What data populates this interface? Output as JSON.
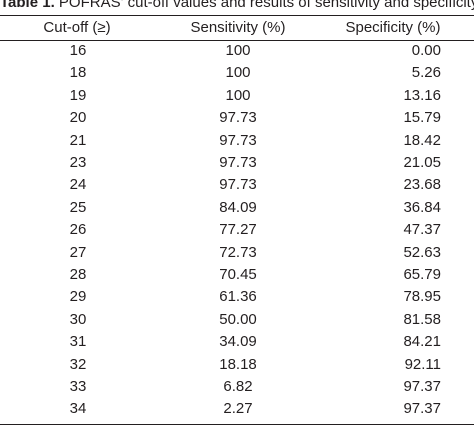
{
  "caption": {
    "label": "Table 1.",
    "text": "POFRAS' cut-off values and results of sensitivity and specificity"
  },
  "table": {
    "header": [
      "Cut-off (≥)",
      "Sensitivity (%)",
      "Specificity (%)"
    ],
    "rows": [
      [
        "16",
        "100",
        "0.00"
      ],
      [
        "18",
        "100",
        "5.26"
      ],
      [
        "19",
        "100",
        "13.16"
      ],
      [
        "20",
        "97.73",
        "15.79"
      ],
      [
        "21",
        "97.73",
        "18.42"
      ],
      [
        "23",
        "97.73",
        "21.05"
      ],
      [
        "24",
        "97.73",
        "23.68"
      ],
      [
        "25",
        "84.09",
        "36.84"
      ],
      [
        "26",
        "77.27",
        "47.37"
      ],
      [
        "27",
        "72.73",
        "52.63"
      ],
      [
        "28",
        "70.45",
        "65.79"
      ],
      [
        "29",
        "61.36",
        "78.95"
      ],
      [
        "30",
        "50.00",
        "81.58"
      ],
      [
        "31",
        "34.09",
        "84.21"
      ],
      [
        "32",
        "18.18",
        "92.11"
      ],
      [
        "33",
        "6.82",
        "97.37"
      ],
      [
        "34",
        "2.27",
        "97.37"
      ]
    ]
  }
}
